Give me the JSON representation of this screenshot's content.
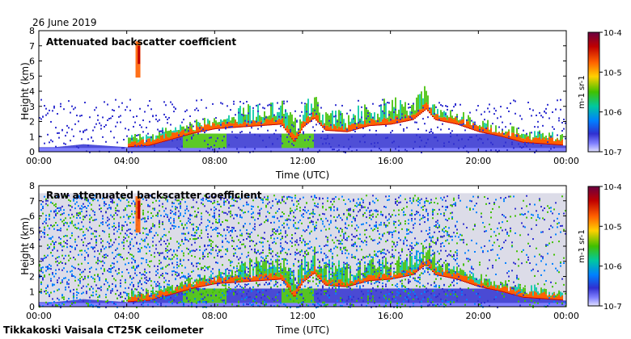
{
  "header": {
    "date": "26 June 2019"
  },
  "footer": {
    "station": "Tikkakoski Vaisala CT25K ceilometer"
  },
  "colorbar": {
    "labels": [
      "10-4",
      "10-5",
      "10-6",
      "10-7"
    ],
    "unit": "m-1 sr-1",
    "colors": [
      "#6a0040",
      "#c00000",
      "#ff6000",
      "#ffd000",
      "#40c000",
      "#00c8a0",
      "#0080ff",
      "#3030d0",
      "#8080ff",
      "#e0e0ff"
    ]
  },
  "chart_data": [
    {
      "type": "heatmap",
      "title": "Attenuated backscatter coefficient",
      "xlabel": "Time (UTC)",
      "ylabel": "Height (km)",
      "xlim": [
        "00:00",
        "24:00"
      ],
      "ylim": [
        0,
        8
      ],
      "xticks": [
        "00:00",
        "04:00",
        "08:00",
        "12:00",
        "16:00",
        "20:00",
        "00:00"
      ],
      "yticks": [
        "0",
        "1",
        "2",
        "3",
        "4",
        "5",
        "6",
        "7",
        "8"
      ],
      "color_scale": "log",
      "clim": [
        1e-07,
        0.0001
      ],
      "cloud_base_km": {
        "time_h": [
          0,
          2,
          4,
          5,
          6,
          7,
          8,
          9,
          10,
          11,
          11.6,
          12,
          12.5,
          13,
          14,
          15,
          16,
          17,
          17.6,
          18,
          19,
          20,
          21,
          22,
          23,
          24
        ],
        "height": [
          0.2,
          0.5,
          0.3,
          0.4,
          0.8,
          1.2,
          1.5,
          1.6,
          1.7,
          1.8,
          0.6,
          1.6,
          2.2,
          1.4,
          1.3,
          1.7,
          1.8,
          2.1,
          2.8,
          2.1,
          1.8,
          1.3,
          1.0,
          0.6,
          0.5,
          0.4
        ]
      }
    },
    {
      "type": "heatmap",
      "title": "Raw attenuated backscatter coefficient",
      "xlabel": "Time (UTC)",
      "ylabel": "Height (km)",
      "xlim": [
        "00:00",
        "24:00"
      ],
      "ylim": [
        0,
        8
      ],
      "xticks": [
        "00:00",
        "04:00",
        "08:00",
        "12:00",
        "16:00",
        "20:00",
        "00:00"
      ],
      "yticks": [
        "0",
        "1",
        "2",
        "3",
        "4",
        "5",
        "6",
        "7",
        "8"
      ],
      "color_scale": "log",
      "clim": [
        1e-07,
        0.0001
      ]
    }
  ]
}
